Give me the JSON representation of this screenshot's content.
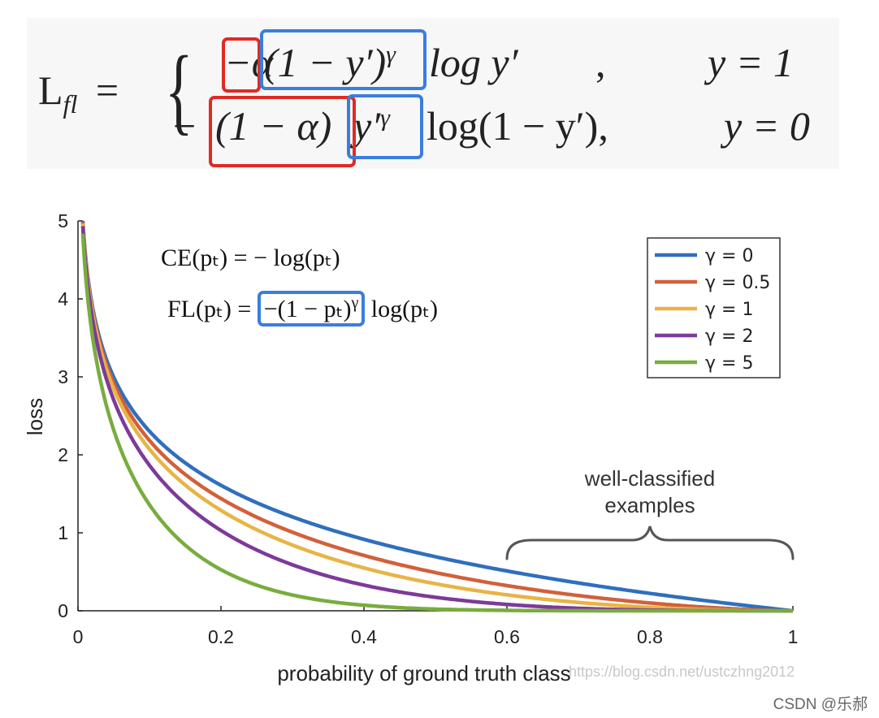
{
  "formula": {
    "lhs": "L",
    "lhs_sub": "fl",
    "equals": "=",
    "row1": {
      "neg_alpha": "−α",
      "modulating": "(1 − y′)",
      "gamma": "γ",
      "log_term": "log y′",
      "comma": ",",
      "condition": "y = 1"
    },
    "row2": {
      "neg": "−",
      "weight": "(1 − α)",
      "modulating": "y′",
      "gamma": "γ",
      "log_term": "log(1 − y′),",
      "condition": "y = 0"
    },
    "highlight_colors": {
      "alpha_box": "#e02a23",
      "modulating_box": "#3b7ddd"
    }
  },
  "inset_formulas": {
    "ce": "CE(pₜ) = − log(pₜ)",
    "fl_prefix": "FL(pₜ) = ",
    "fl_highlight": "−(1 − pₜ)",
    "fl_gamma": "γ",
    "fl_suffix": " log(pₜ)"
  },
  "chart_data": {
    "type": "line",
    "title": "",
    "xlabel": "probability of ground truth class",
    "ylabel": "loss",
    "xlim": [
      0,
      1
    ],
    "ylim": [
      0,
      5
    ],
    "xticks": [
      "0",
      "0.2",
      "0.4",
      "0.6",
      "0.8",
      "1"
    ],
    "yticks": [
      "0",
      "1",
      "2",
      "3",
      "4",
      "5"
    ],
    "formula": "FL(p) = -(1-p)^gamma * log(p)",
    "x": [
      0.0067,
      0.01,
      0.02,
      0.05,
      0.1,
      0.2,
      0.3,
      0.4,
      0.5,
      0.6,
      0.7,
      0.8,
      0.9,
      1.0
    ],
    "series": [
      {
        "name": "γ = 0",
        "gamma": 0,
        "color": "#2f6fbd",
        "values": [
          5.0,
          4.61,
          3.91,
          3.0,
          2.3,
          1.61,
          1.2,
          0.92,
          0.69,
          0.51,
          0.36,
          0.22,
          0.11,
          0.0
        ]
      },
      {
        "name": "γ = 0.5",
        "gamma": 0.5,
        "color": "#d2603a",
        "values": [
          4.98,
          4.58,
          3.87,
          2.92,
          2.18,
          1.44,
          1.01,
          0.71,
          0.49,
          0.32,
          0.19,
          0.1,
          0.03,
          0.0
        ]
      },
      {
        "name": "γ = 1",
        "gamma": 1,
        "color": "#e8b444",
        "values": [
          4.97,
          4.56,
          3.83,
          2.85,
          2.07,
          1.29,
          0.84,
          0.55,
          0.35,
          0.2,
          0.11,
          0.04,
          0.01,
          0.0
        ]
      },
      {
        "name": "γ = 2",
        "gamma": 2,
        "color": "#7d3a9a",
        "values": [
          4.93,
          4.52,
          3.76,
          2.71,
          1.87,
          1.03,
          0.59,
          0.33,
          0.17,
          0.08,
          0.03,
          0.01,
          0.0,
          0.0
        ]
      },
      {
        "name": "γ = 5",
        "gamma": 5,
        "color": "#78ad3e",
        "values": [
          4.83,
          4.38,
          3.54,
          2.32,
          1.36,
          0.53,
          0.2,
          0.07,
          0.02,
          0.01,
          0.0,
          0.0,
          0.0,
          0.0
        ]
      }
    ],
    "legend_position": "top-right",
    "grid": false,
    "annotation": {
      "text_line1": "well-classified",
      "text_line2": "examples",
      "x_range": [
        0.6,
        1.0
      ]
    }
  },
  "watermarks": {
    "blog_url": "https://blog.csdn.net/ustczhng2012",
    "credit": "CSDN @乐郝"
  }
}
